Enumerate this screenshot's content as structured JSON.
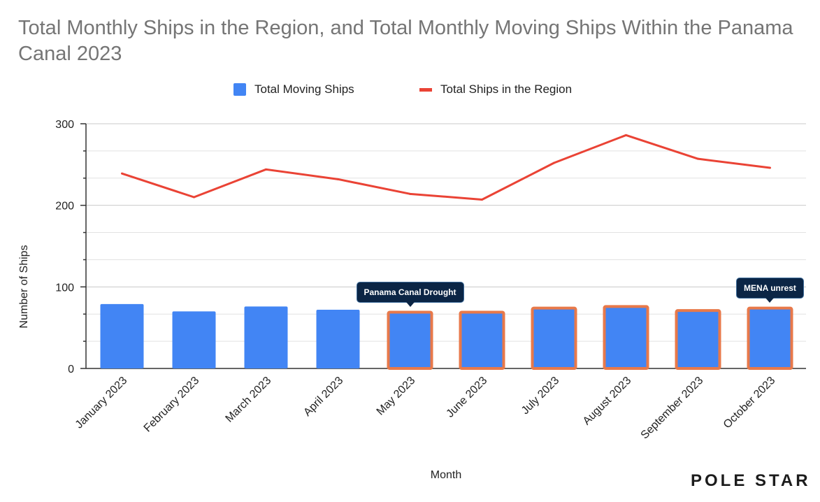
{
  "chart_data": {
    "type": "bar+line",
    "title": "Total Monthly Ships in the Region, and Total Monthly Moving Ships Within the Panama Canal 2023",
    "xlabel": "Month",
    "ylabel": "Number of Ships",
    "ylim": [
      0,
      300
    ],
    "yticks": [
      0,
      100,
      200,
      300
    ],
    "grid": true,
    "legend_position": "top-center",
    "categories": [
      "January 2023",
      "February 2023",
      "March 2023",
      "April 2023",
      "May 2023",
      "June 2023",
      "July 2023",
      "August 2023",
      "September 2023",
      "October 2023"
    ],
    "series": [
      {
        "name": "Total Moving Ships",
        "type": "bar",
        "color": "#4285f4",
        "values": [
          79,
          70,
          76,
          72,
          69,
          69,
          74,
          76,
          71,
          74
        ],
        "highlighted": [
          false,
          false,
          false,
          false,
          true,
          true,
          true,
          true,
          true,
          true
        ],
        "highlight_color": "#e8794a"
      },
      {
        "name": "Total Ships in the Region",
        "type": "line",
        "color": "#ea4335",
        "values": [
          239,
          210,
          244,
          232,
          214,
          207,
          252,
          286,
          257,
          246
        ]
      }
    ],
    "annotations": [
      {
        "text": "Panama Canal Drought",
        "category": "May 2023"
      },
      {
        "text": "MENA unrest",
        "category": "October 2023"
      }
    ]
  },
  "brand": {
    "logo_text": "POLE STAR"
  }
}
